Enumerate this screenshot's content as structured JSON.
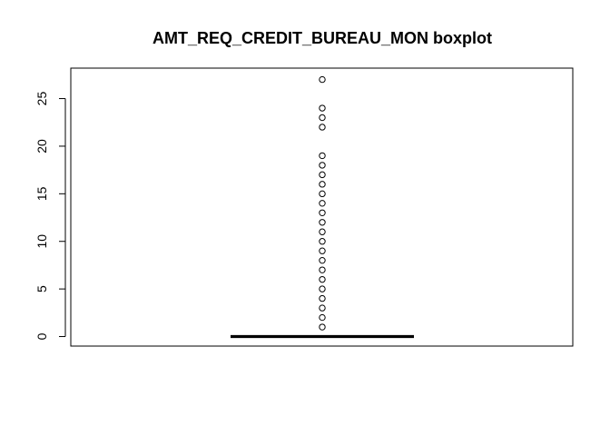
{
  "chart_data": {
    "type": "boxplot",
    "title": "AMT_REQ_CREDIT_BUREAU_MON boxplot",
    "xlabel": "",
    "ylabel": "",
    "ylim": [
      -1,
      28.2
    ],
    "y_ticks": [
      0,
      5,
      10,
      15,
      20,
      25
    ],
    "grid": false,
    "box": {
      "min": 0,
      "q1": 0,
      "median": 0,
      "q3": 0,
      "max": 0
    },
    "outliers": [
      1,
      2,
      3,
      4,
      5,
      6,
      7,
      8,
      9,
      10,
      11,
      12,
      13,
      14,
      15,
      16,
      17,
      18,
      19,
      22,
      23,
      24,
      27
    ],
    "colors": {
      "line": "#000000",
      "background": "#ffffff"
    }
  }
}
